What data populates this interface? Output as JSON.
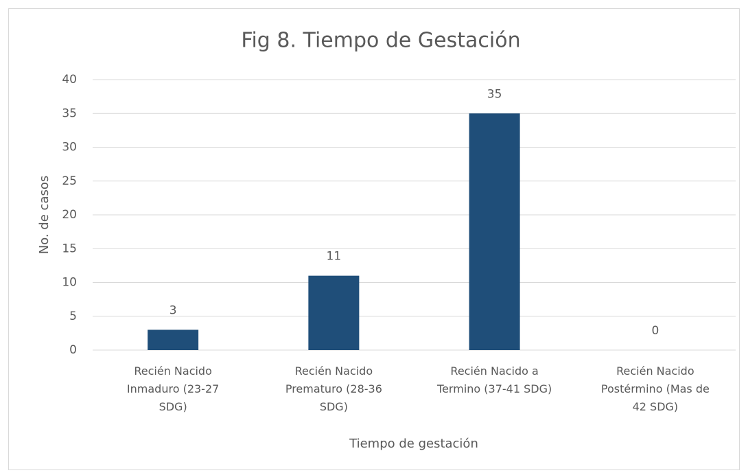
{
  "chart_data": {
    "type": "bar",
    "title": "Fig 8. Tiempo de Gestación",
    "x_label": "Tiempo de gestación",
    "y_label": "No. de casos",
    "categories": [
      "Recién Nacido Inmaduro (23-27 SDG)",
      "Recién Nacido Prematuro (28-36 SDG)",
      "Recién Nacido a Termino (37-41 SDG)",
      "Recién Nacido Postérmino (Mas de 42 SDG)"
    ],
    "values": [
      3,
      11,
      35,
      0
    ],
    "color": "#1f4e79",
    "ylim": [
      0,
      40
    ],
    "yticks": [
      0,
      5,
      10,
      15,
      20,
      25,
      30,
      35,
      40
    ],
    "grid": true
  }
}
